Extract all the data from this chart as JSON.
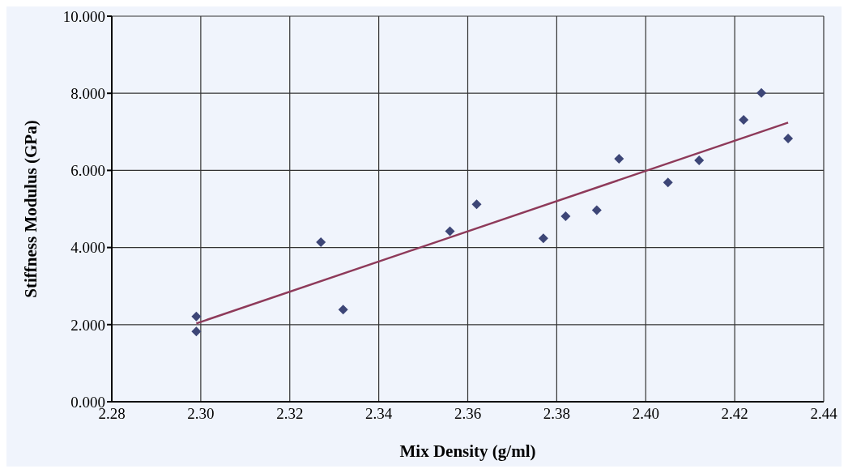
{
  "chart_data": {
    "type": "scatter",
    "xlabel": "Mix Density (g/ml)",
    "ylabel": "Stiffness Modulus (GPa)",
    "xlim": [
      2.28,
      2.44
    ],
    "xticks": [
      2.28,
      {
        "value": 2.3,
        "label": "2.30"
      },
      2.32,
      2.34,
      2.36,
      2.38,
      {
        "value": 2.4,
        "label": "2.40"
      },
      2.42,
      2.44
    ],
    "ylim": [
      0,
      10
    ],
    "yticks": [
      {
        "value": 0,
        "label": "0.000"
      },
      {
        "value": 2,
        "label": "2.000"
      },
      {
        "value": 4,
        "label": "4.000"
      },
      {
        "value": 6,
        "label": "6.000"
      },
      {
        "value": 8,
        "label": "8.000"
      },
      {
        "value": 10,
        "label": "10.000"
      }
    ],
    "grid": true,
    "marker": "diamond",
    "series": [
      {
        "color": "#3d4677",
        "x": [
          2.299,
          2.299,
          2.327,
          2.332,
          2.356,
          2.362,
          2.377,
          2.382,
          2.389,
          2.394,
          2.405,
          2.412,
          2.422,
          2.426,
          2.432
        ],
        "values": [
          2.21,
          1.82,
          4.14,
          2.39,
          4.42,
          5.12,
          4.24,
          4.81,
          4.97,
          6.3,
          5.69,
          6.26,
          7.31,
          8.01,
          6.83
        ]
      },
      {
        "type": "line",
        "color": "#8e3a5a",
        "marker": "none",
        "line_style": "solid",
        "x": [
          2.299,
          2.432
        ],
        "values": [
          2.03,
          7.24
        ]
      }
    ]
  }
}
